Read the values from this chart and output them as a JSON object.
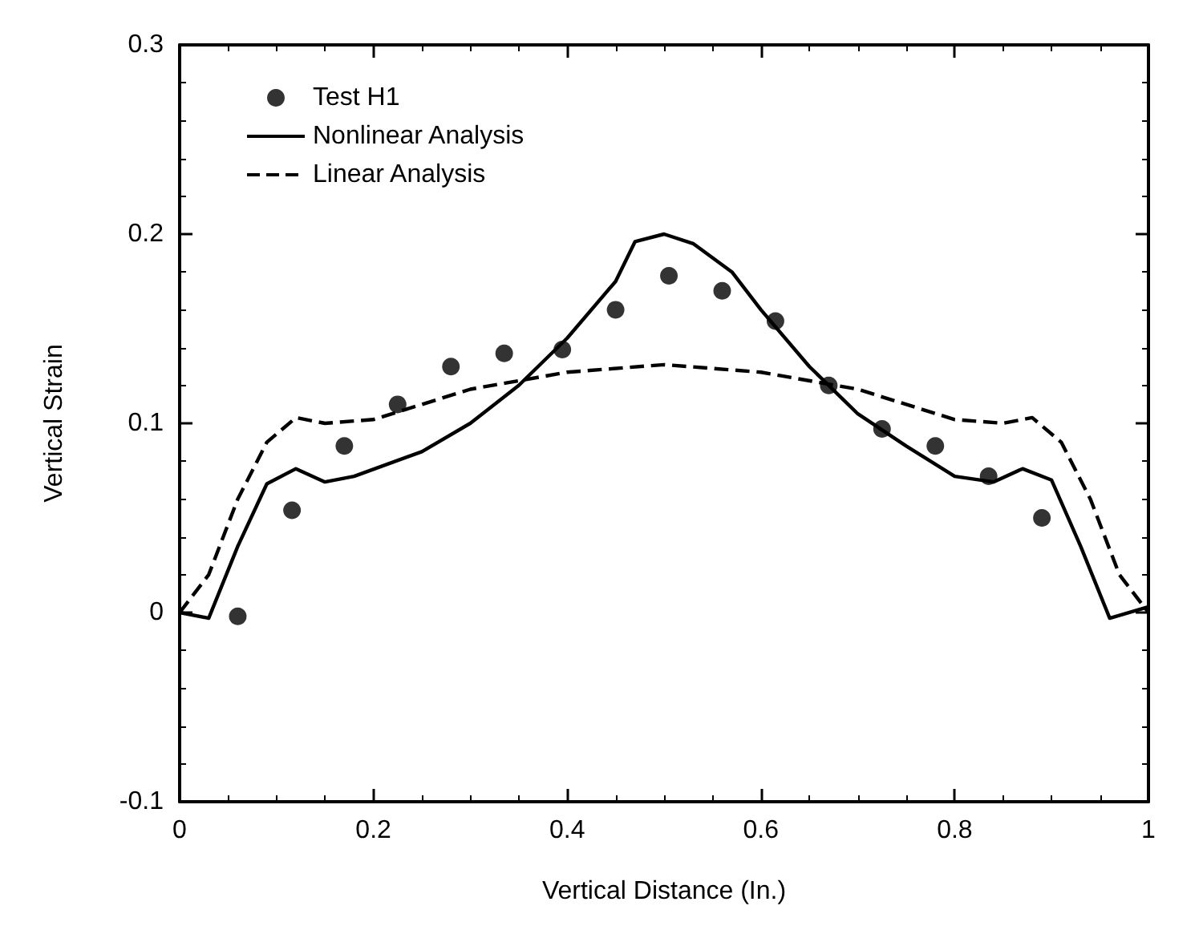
{
  "chart_data": {
    "type": "line",
    "xlabel": "Vertical Distance (In.)",
    "ylabel": "Vertical Strain",
    "xlim": [
      0,
      1
    ],
    "ylim": [
      -0.1,
      0.3
    ],
    "xticks": [
      0,
      0.2,
      0.4,
      0.6,
      0.8,
      1
    ],
    "yticks": [
      -0.1,
      0,
      0.1,
      0.2,
      0.3
    ],
    "grid": false,
    "legend": "top left",
    "series": [
      {
        "name": "Test H1",
        "type": "scatter",
        "marker": "circle",
        "color": "#000000",
        "x": [
          0.06,
          0.116,
          0.17,
          0.225,
          0.28,
          0.335,
          0.395,
          0.45,
          0.505,
          0.56,
          0.615,
          0.67,
          0.725,
          0.78,
          0.835,
          0.89
        ],
        "values": [
          -0.002,
          0.054,
          0.088,
          0.11,
          0.13,
          0.137,
          0.139,
          0.16,
          0.178,
          0.17,
          0.154,
          0.12,
          0.097,
          0.088,
          0.072,
          0.05
        ]
      },
      {
        "name": "Nonlinear Analysis",
        "line_style": "solid",
        "marker": "none",
        "color": "#000000",
        "x": [
          0,
          0.03,
          0.06,
          0.09,
          0.12,
          0.15,
          0.18,
          0.25,
          0.3,
          0.35,
          0.4,
          0.45,
          0.47,
          0.5,
          0.53,
          0.57,
          0.6,
          0.65,
          0.7,
          0.75,
          0.8,
          0.84,
          0.87,
          0.9,
          0.93,
          0.96,
          1
        ],
        "values": [
          0,
          -0.003,
          0.035,
          0.068,
          0.076,
          0.069,
          0.072,
          0.085,
          0.1,
          0.12,
          0.145,
          0.175,
          0.196,
          0.2,
          0.195,
          0.18,
          0.16,
          0.13,
          0.105,
          0.088,
          0.072,
          0.069,
          0.076,
          0.07,
          0.035,
          -0.003,
          0.003
        ]
      },
      {
        "name": "Linear Analysis",
        "line_style": "dashed",
        "marker": "none",
        "color": "#000000",
        "x": [
          0,
          0.03,
          0.06,
          0.09,
          0.12,
          0.15,
          0.2,
          0.25,
          0.3,
          0.4,
          0.5,
          0.6,
          0.7,
          0.75,
          0.8,
          0.85,
          0.88,
          0.91,
          0.94,
          0.97,
          1
        ],
        "values": [
          0,
          0.02,
          0.06,
          0.09,
          0.103,
          0.1,
          0.102,
          0.11,
          0.118,
          0.127,
          0.131,
          0.127,
          0.118,
          0.11,
          0.102,
          0.1,
          0.103,
          0.09,
          0.06,
          0.02,
          0
        ]
      }
    ]
  }
}
